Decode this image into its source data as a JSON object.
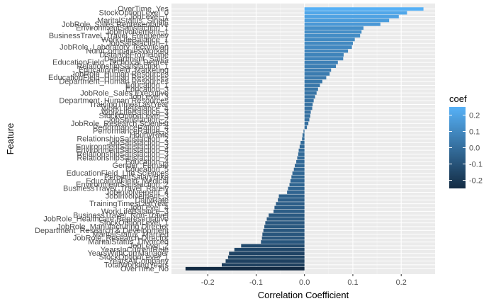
{
  "chart_data": {
    "type": "bar",
    "orientation": "horizontal",
    "xlabel": "Correlation Coefficient",
    "ylabel": "Feature",
    "xlim": [
      -0.275,
      0.27
    ],
    "x_ticks": [
      -0.2,
      -0.1,
      0.0,
      0.1,
      0.2
    ],
    "x_tick_labels": [
      "-0.2",
      "-0.1",
      "0.0",
      "0.1",
      "0.2"
    ],
    "grid": true,
    "legend": {
      "title": "coef",
      "placement": "right",
      "ticks": [
        0.2,
        0.1,
        0.0,
        -0.1,
        -0.2
      ],
      "tick_labels": [
        "0.2",
        "0.1",
        "0.0",
        "-0.1",
        "-0.2"
      ],
      "range": [
        -0.25,
        0.25
      ],
      "color_low": "#132B43",
      "color_high": "#56B1F7"
    },
    "bars": [
      {
        "label": "OverTime_Yes",
        "value": 0.246
      },
      {
        "label": "StockOptionLevel_0",
        "value": 0.212
      },
      {
        "label": "JobLevel_1",
        "value": 0.195
      },
      {
        "label": "MaritalStatus_Single",
        "value": 0.175
      },
      {
        "label": "JobRole_Sales Representative",
        "value": 0.157
      },
      {
        "label": "EnvironmentSatisfaction_1",
        "value": 0.122
      },
      {
        "label": "JobInvolvement_1",
        "value": 0.118
      },
      {
        "label": "BusinessTravel_Travel_Frequently",
        "value": 0.115
      },
      {
        "label": "WorkLifeBalance_1",
        "value": 0.104
      },
      {
        "label": "JobSatisfaction_1",
        "value": 0.1
      },
      {
        "label": "JobRole_Laboratory Technician",
        "value": 0.098
      },
      {
        "label": "NumCompaniesWorked",
        "value": 0.09
      },
      {
        "label": "DistanceFromHome",
        "value": 0.081
      },
      {
        "label": "Department_Sales",
        "value": 0.08
      },
      {
        "label": "EducationField_Technical Degree",
        "value": 0.069
      },
      {
        "label": "RelationshipSatisfaction_1",
        "value": 0.065
      },
      {
        "label": "EducationField_Marketing",
        "value": 0.055
      },
      {
        "label": "JobRole_Human Resources",
        "value": 0.052
      },
      {
        "label": "EducationField_Human Resources",
        "value": 0.045
      },
      {
        "label": "Department_Human Resources",
        "value": 0.037
      },
      {
        "label": "Education_1",
        "value": 0.032
      },
      {
        "label": "Education_3",
        "value": 0.028
      },
      {
        "label": "JobRole_Sales Executive",
        "value": 0.025
      },
      {
        "label": "JobLevel_3",
        "value": 0.022
      },
      {
        "label": "Department_Human Resources",
        "value": 0.019
      },
      {
        "label": "TrainingTimesLastYear",
        "value": 0.017
      },
      {
        "label": "WorkLifeBalance_4",
        "value": 0.016
      },
      {
        "label": "WorkLifeBalance_3",
        "value": 0.013
      },
      {
        "label": "StockOptionLevel_3",
        "value": 0.012
      },
      {
        "label": "JobSatisfaction_2",
        "value": 0.01
      },
      {
        "label": "JobRole_Research Scientist",
        "value": 0.008
      },
      {
        "label": "PerformanceRating_4",
        "value": 0.005
      },
      {
        "label": "PerformanceRating_3",
        "value": -0.002
      },
      {
        "label": "HourlyRate",
        "value": -0.004
      },
      {
        "label": "RelationshipSatisfaction_2",
        "value": -0.005
      },
      {
        "label": "JobSatisfaction_3",
        "value": -0.008
      },
      {
        "label": "EnvironmentSatisfaction_3",
        "value": -0.01
      },
      {
        "label": "EnvironmentSatisfaction_4",
        "value": -0.012
      },
      {
        "label": "RelationshipSatisfaction_3",
        "value": -0.013
      },
      {
        "label": "RelationshipSatisfaction_4",
        "value": -0.015
      },
      {
        "label": "Education_4",
        "value": -0.017
      },
      {
        "label": "Gender_Female",
        "value": -0.02
      },
      {
        "label": "Education_5",
        "value": -0.022
      },
      {
        "label": "EducationField_Life Sciences",
        "value": -0.025
      },
      {
        "label": "PercentSalaryHike",
        "value": -0.027
      },
      {
        "label": "EducationField_Medical",
        "value": -0.029
      },
      {
        "label": "EnvironmentSatisfaction_2",
        "value": -0.031
      },
      {
        "label": "BusinessTravel_Travel_Rarely",
        "value": -0.034
      },
      {
        "label": "JobInvolvement_4",
        "value": -0.036
      },
      {
        "label": "JobInvolvement_3",
        "value": -0.053
      },
      {
        "label": "DailyRate",
        "value": -0.055
      },
      {
        "label": "TrainingTimesLastYear",
        "value": -0.059
      },
      {
        "label": "JobLevel_4",
        "value": -0.062
      },
      {
        "label": "WorkLifeBalance_3",
        "value": -0.064
      },
      {
        "label": "BusinessTravel_Non-Travel",
        "value": -0.074
      },
      {
        "label": "JobRole_Healthcare Representative",
        "value": -0.078
      },
      {
        "label": "StockOptionLevel_1",
        "value": -0.081
      },
      {
        "label": "JobRole_Manufacturing Director",
        "value": -0.083
      },
      {
        "label": "Department_Research & Development",
        "value": -0.085
      },
      {
        "label": "MaritalStatus_Married",
        "value": -0.087
      },
      {
        "label": "JobRole_Research Director",
        "value": -0.088
      },
      {
        "label": "MaritalStatus_Divorced",
        "value": -0.09
      },
      {
        "label": "JobLevel_2",
        "value": -0.131
      },
      {
        "label": "YearsInCurrentRole",
        "value": -0.145
      },
      {
        "label": "YearsWithCurrManager",
        "value": -0.156
      },
      {
        "label": "StockOptionLevel_1",
        "value": -0.158
      },
      {
        "label": "YearsAtCompany",
        "value": -0.163
      },
      {
        "label": "TotalWorkingYears",
        "value": -0.171
      },
      {
        "label": "OverTime_No",
        "value": -0.246
      }
    ]
  }
}
